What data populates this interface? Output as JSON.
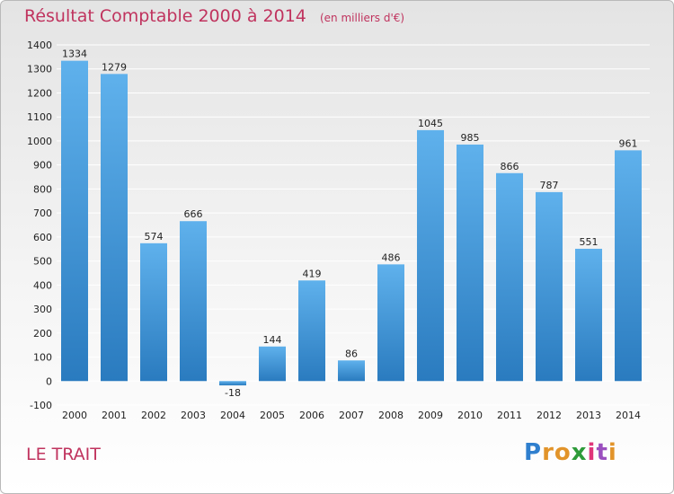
{
  "colors": {
    "title": "#c0335e",
    "bar_light": "#5fb1ec",
    "bar_dark": "#2a7bbf",
    "grid": "#ffffff",
    "text": "#222222"
  },
  "footer": {
    "commune": "LE TRAIT"
  },
  "logo": {
    "text": "Proxiti",
    "letter_colors": [
      "#2f7fce",
      "#e2942a",
      "#e2942a",
      "#2e9b3a",
      "#e0357a",
      "#9b4fbf",
      "#e2942a"
    ]
  },
  "chart_data": {
    "type": "bar",
    "title": "Résultat Comptable 2000 à 2014",
    "subtitle": "(en milliers d'€)",
    "categories": [
      "2000",
      "2001",
      "2002",
      "2003",
      "2004",
      "2005",
      "2006",
      "2007",
      "2008",
      "2009",
      "2010",
      "2011",
      "2012",
      "2013",
      "2014"
    ],
    "values": [
      1334,
      1279,
      574,
      666,
      -18,
      144,
      419,
      86,
      486,
      1045,
      985,
      866,
      787,
      551,
      961
    ],
    "data_labels": [
      "1334",
      "1279",
      "574",
      "666",
      "-18",
      "144",
      "419",
      "86",
      "486",
      "1045",
      "985",
      "866",
      "787",
      "551",
      "961"
    ],
    "ylim": [
      -100,
      1400
    ],
    "yticks": [
      -100,
      0,
      100,
      200,
      300,
      400,
      500,
      600,
      700,
      800,
      900,
      1000,
      1100,
      1200,
      1300,
      1400
    ],
    "grid": true,
    "legend": "none"
  }
}
